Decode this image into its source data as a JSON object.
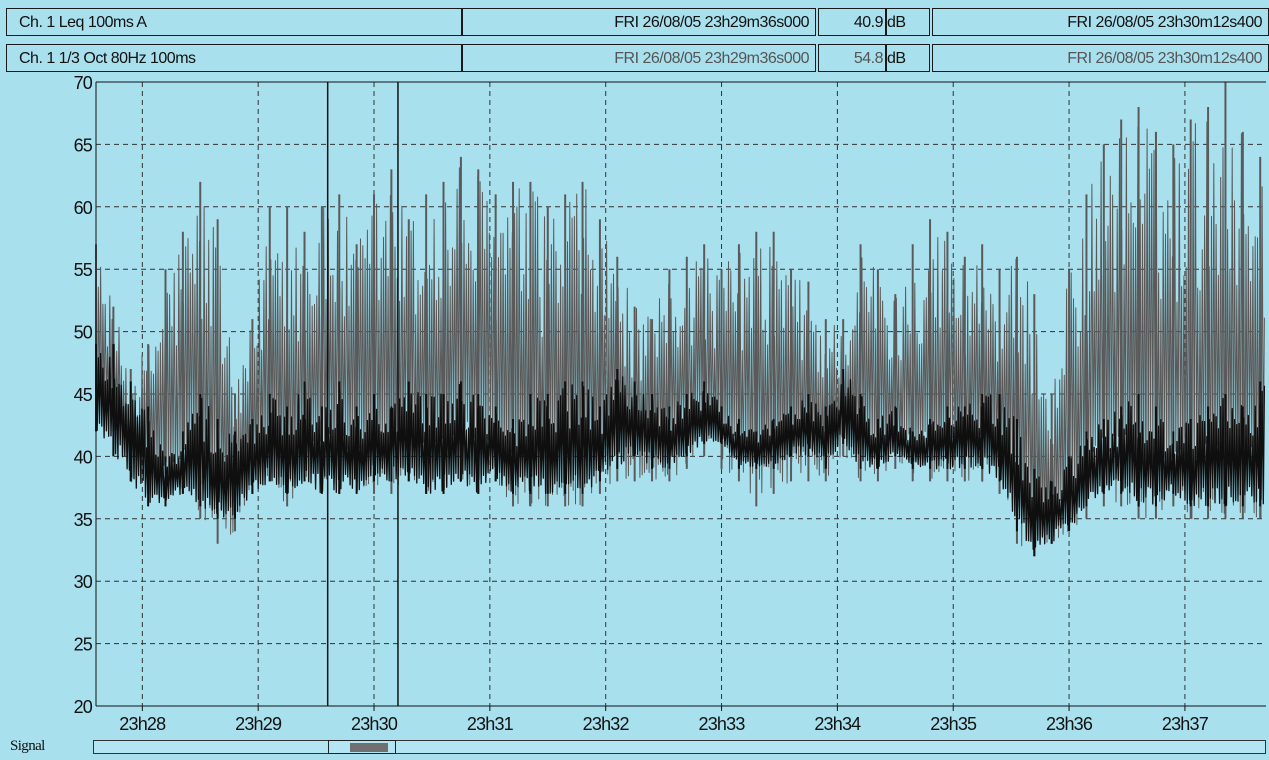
{
  "header": {
    "row1": {
      "channel": "Ch. 1 Leq 100ms A",
      "cursor1_time": "FRI 26/08/05 23h29m36s000",
      "value": "40.9",
      "unit": "dB",
      "cursor2_time": "FRI 26/08/05 23h30m12s400"
    },
    "row2": {
      "channel": "Ch. 1 1/3 Oct 80Hz 100ms",
      "cursor1_time": "FRI 26/08/05 23h29m36s000",
      "value": "54.8",
      "unit": "dB",
      "cursor2_time": "FRI 26/08/05 23h30m12s400"
    }
  },
  "signal": {
    "label": "Signal"
  },
  "colors": {
    "background": "#a8e0ee",
    "leq_series": "#0f0f0f",
    "octave_series": "#5a5a5a",
    "cursor": "#111111",
    "grid": "#333333"
  },
  "chart_data": {
    "type": "line",
    "x_unit": "time (hh:mm)",
    "xlim": [
      "23:27:36",
      "23:37:42"
    ],
    "ylim": [
      20,
      70
    ],
    "yticks": [
      20,
      25,
      30,
      35,
      40,
      45,
      50,
      55,
      60,
      65,
      70
    ],
    "xticks": [
      "23h28",
      "23h29",
      "23h30",
      "23h31",
      "23h32",
      "23h33",
      "23h34",
      "23h35",
      "23h36",
      "23h37"
    ],
    "grid": true,
    "cursors": [
      "23:29:36.0",
      "23:30:12.4"
    ],
    "series": [
      {
        "key": "octave_80hz",
        "color": "#5a5a5a",
        "time": [
          "23:27:36",
          "23:27:45",
          "23:27:54",
          "23:28:03",
          "23:28:12",
          "23:28:21",
          "23:28:30",
          "23:28:39",
          "23:28:48",
          "23:28:57",
          "23:29:06",
          "23:29:15",
          "23:29:24",
          "23:29:33",
          "23:29:42",
          "23:29:51",
          "23:30:00",
          "23:30:09",
          "23:30:18",
          "23:30:27",
          "23:30:36",
          "23:30:45",
          "23:30:54",
          "23:31:03",
          "23:31:12",
          "23:31:21",
          "23:31:30",
          "23:31:39",
          "23:31:48",
          "23:31:57",
          "23:32:06",
          "23:32:15",
          "23:32:24",
          "23:32:33",
          "23:32:42",
          "23:32:51",
          "23:33:00",
          "23:33:09",
          "23:33:18",
          "23:33:27",
          "23:33:36",
          "23:33:45",
          "23:33:54",
          "23:34:03",
          "23:34:12",
          "23:34:21",
          "23:34:30",
          "23:34:39",
          "23:34:48",
          "23:34:57",
          "23:35:06",
          "23:35:15",
          "23:35:24",
          "23:35:33",
          "23:35:42",
          "23:35:51",
          "23:36:00",
          "23:36:09",
          "23:36:18",
          "23:36:27",
          "23:36:36",
          "23:36:45",
          "23:36:54",
          "23:37:03",
          "23:37:12",
          "23:37:21",
          "23:37:30",
          "23:37:39"
        ],
        "high": [
          57,
          52,
          47,
          49,
          55,
          58,
          62,
          59,
          45,
          51,
          60,
          60,
          58,
          60,
          61,
          57,
          61,
          63,
          59,
          61,
          62,
          64,
          63,
          61,
          62,
          62,
          60,
          61,
          62,
          59,
          56,
          52,
          51,
          55,
          56,
          57,
          55,
          57,
          58,
          58,
          55,
          54,
          51,
          51,
          57,
          55,
          53,
          57,
          59,
          58,
          56,
          57,
          55,
          56,
          53,
          45,
          55,
          61,
          65,
          67,
          68,
          66,
          65,
          67,
          68,
          70,
          66,
          64
        ],
        "low": [
          43,
          42,
          38,
          37,
          36,
          37,
          35,
          33,
          34,
          37,
          38,
          36,
          38,
          38,
          37,
          38,
          37,
          37,
          38,
          37,
          37,
          38,
          37,
          38,
          36,
          36,
          36,
          36,
          36,
          37,
          38,
          38,
          38,
          38,
          39,
          40,
          39,
          38,
          36,
          37,
          38,
          38,
          38,
          40,
          38,
          38,
          39,
          38,
          38,
          38,
          38,
          38,
          37,
          33,
          32,
          33,
          34,
          35,
          36,
          36,
          35,
          35,
          36,
          35,
          35,
          35,
          35,
          35
        ]
      },
      {
        "key": "leq_a",
        "color": "#0f0f0f",
        "time": [
          "23:27:36",
          "23:27:45",
          "23:27:54",
          "23:28:03",
          "23:28:12",
          "23:28:21",
          "23:28:30",
          "23:28:39",
          "23:28:48",
          "23:28:57",
          "23:29:06",
          "23:29:15",
          "23:29:24",
          "23:29:33",
          "23:29:42",
          "23:29:51",
          "23:30:00",
          "23:30:09",
          "23:30:18",
          "23:30:27",
          "23:30:36",
          "23:30:45",
          "23:30:54",
          "23:31:03",
          "23:31:12",
          "23:31:21",
          "23:31:30",
          "23:31:39",
          "23:31:48",
          "23:31:57",
          "23:32:06",
          "23:32:15",
          "23:32:24",
          "23:32:33",
          "23:32:42",
          "23:32:51",
          "23:33:00",
          "23:33:09",
          "23:33:18",
          "23:33:27",
          "23:33:36",
          "23:33:45",
          "23:33:54",
          "23:34:03",
          "23:34:12",
          "23:34:21",
          "23:34:30",
          "23:34:39",
          "23:34:48",
          "23:34:57",
          "23:35:06",
          "23:35:15",
          "23:35:24",
          "23:35:33",
          "23:35:42",
          "23:35:51",
          "23:36:00",
          "23:36:09",
          "23:36:18",
          "23:36:27",
          "23:36:36",
          "23:36:45",
          "23:36:54",
          "23:37:03",
          "23:37:12",
          "23:37:21",
          "23:37:30",
          "23:37:39"
        ],
        "high": [
          49,
          49,
          46,
          44,
          40,
          42,
          45,
          43,
          42,
          43,
          45,
          44,
          46,
          44,
          46,
          44,
          45,
          44,
          46,
          45,
          45,
          46,
          45,
          44,
          43,
          45,
          45,
          46,
          46,
          44,
          47,
          46,
          45,
          44,
          45,
          46,
          44,
          43,
          42,
          43,
          44,
          45,
          44,
          47,
          45,
          43,
          44,
          42,
          43,
          44,
          44,
          45,
          45,
          43,
          39,
          38,
          40,
          42,
          43,
          44,
          45,
          44,
          42,
          43,
          44,
          45,
          44,
          46
        ],
        "low": [
          42,
          40,
          38,
          36,
          36,
          37,
          36,
          35,
          35,
          37,
          38,
          37,
          38,
          37,
          37,
          37,
          38,
          38,
          38,
          37,
          37,
          38,
          37,
          38,
          37,
          37,
          37,
          37,
          37,
          38,
          39,
          40,
          39,
          39,
          40,
          41,
          41,
          39,
          39,
          39,
          40,
          40,
          39,
          41,
          39,
          39,
          40,
          39,
          39,
          39,
          39,
          39,
          38,
          34,
          32,
          33,
          34,
          36,
          37,
          37,
          36,
          36,
          37,
          36,
          36,
          36,
          36,
          36
        ]
      }
    ]
  }
}
